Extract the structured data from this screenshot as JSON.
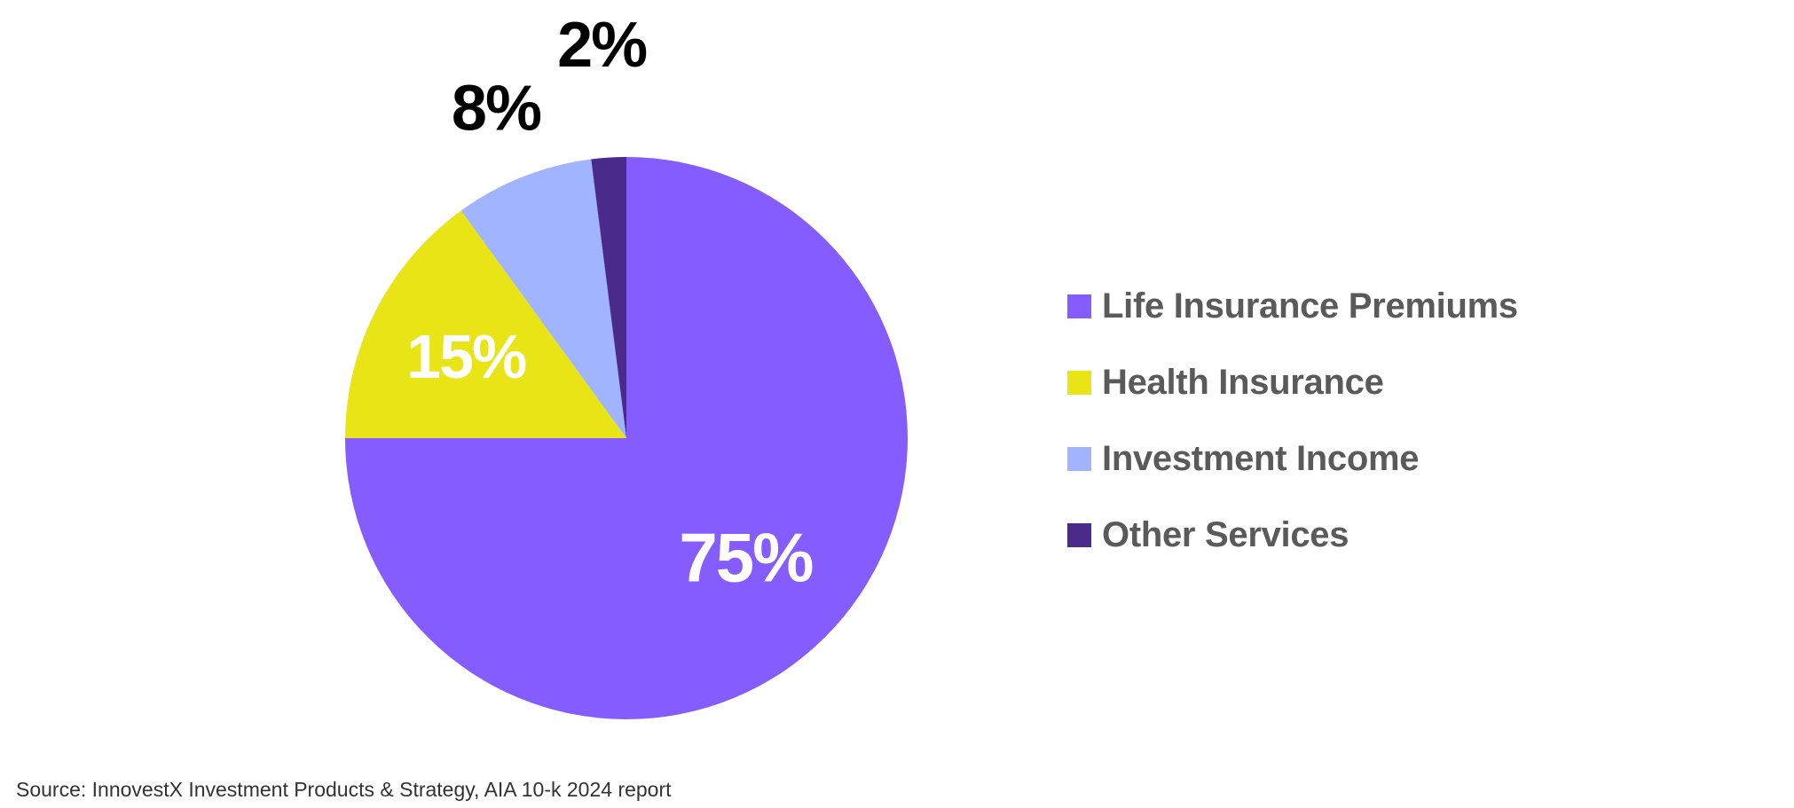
{
  "chart_data": {
    "type": "pie",
    "title": "",
    "categories": [
      "Life Insurance Premiums",
      "Health Insurance",
      "Investment Income",
      "Other Services"
    ],
    "values": [
      75,
      15,
      8,
      2
    ],
    "value_labels": [
      "75%",
      "15%",
      "8%",
      "2%"
    ],
    "colors": [
      "#845cff",
      "#e8e416",
      "#a0b4ff",
      "#4a2a8a"
    ],
    "label_colors": [
      "#ffffff",
      "#ffffff",
      "#000000",
      "#000000"
    ],
    "legend_position": "right"
  },
  "legend": {
    "items": [
      {
        "label": "Life Insurance Premiums",
        "color": "#845cff"
      },
      {
        "label": "Health Insurance",
        "color": "#e8e416"
      },
      {
        "label": "Investment Income",
        "color": "#a0b4ff"
      },
      {
        "label": "Other Services",
        "color": "#4a2a8a"
      }
    ]
  },
  "source": "Source: InnovestX Investment Products & Strategy, AIA 10-k 2024 report"
}
